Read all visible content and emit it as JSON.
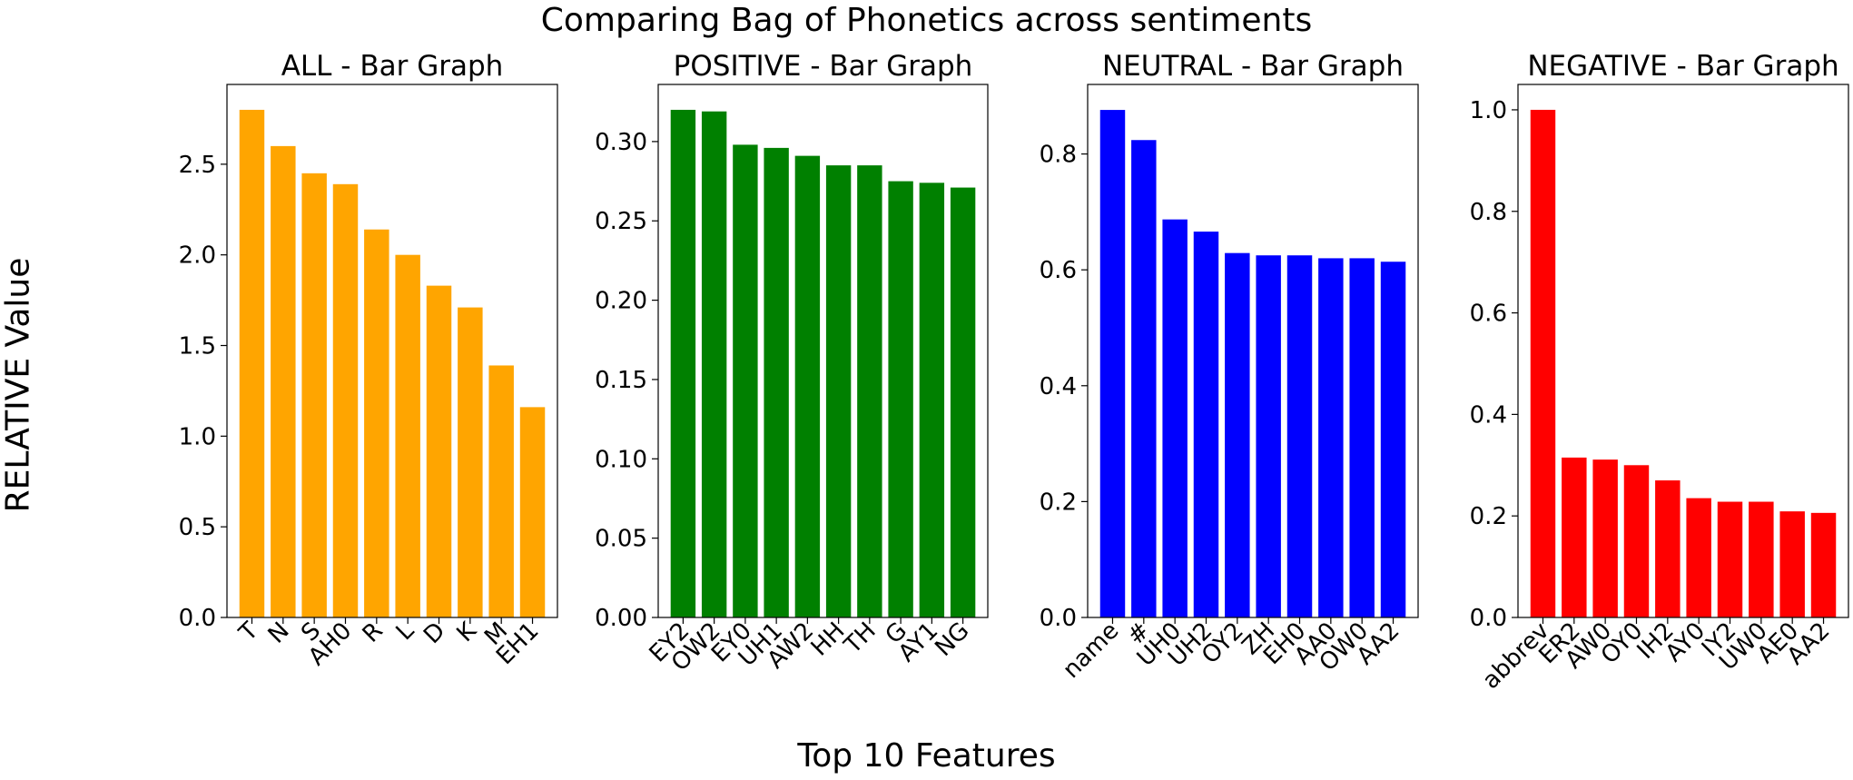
{
  "figure": {
    "title": "Comparing Bag of Phonetics across sentiments",
    "xlabel": "Top 10 Features",
    "ylabel": "RELATIVE Value"
  },
  "chart_data": [
    {
      "type": "bar",
      "title": "ALL - Bar Graph",
      "color": "#ffa500",
      "categories": [
        "T",
        "N",
        "S",
        "AH0",
        "R",
        "L",
        "D",
        "K",
        "M",
        "EH1"
      ],
      "values": [
        2.8,
        2.6,
        2.45,
        2.39,
        2.14,
        2.0,
        1.83,
        1.71,
        1.39,
        1.16
      ],
      "ylim": [
        0,
        2.94
      ],
      "yticks": [
        0.0,
        0.5,
        1.0,
        1.5,
        2.0,
        2.5
      ],
      "ytick_labels": [
        "0.0",
        "0.5",
        "1.0",
        "1.5",
        "2.0",
        "2.5"
      ],
      "grid": false
    },
    {
      "type": "bar",
      "title": "POSITIVE - Bar Graph",
      "color": "#008000",
      "categories": [
        "EY2",
        "OW2",
        "EY0",
        "UH1",
        "AW2",
        "HH",
        "TH",
        "G",
        "AY1",
        "NG"
      ],
      "values": [
        0.32,
        0.319,
        0.298,
        0.296,
        0.291,
        0.285,
        0.285,
        0.275,
        0.274,
        0.271
      ],
      "ylim": [
        0,
        0.336
      ],
      "yticks": [
        0.0,
        0.05,
        0.1,
        0.15,
        0.2,
        0.25,
        0.3
      ],
      "ytick_labels": [
        "0.00",
        "0.05",
        "0.10",
        "0.15",
        "0.20",
        "0.25",
        "0.30"
      ],
      "grid": false
    },
    {
      "type": "bar",
      "title": "NEUTRAL - Bar Graph",
      "color": "#0000ff",
      "categories": [
        "name",
        "#",
        "UH0",
        "UH2",
        "OY2",
        "ZH",
        "EH0",
        "AA0",
        "OW0",
        "AA2"
      ],
      "values": [
        0.876,
        0.824,
        0.687,
        0.666,
        0.629,
        0.625,
        0.625,
        0.62,
        0.62,
        0.614
      ],
      "ylim": [
        0,
        0.92
      ],
      "yticks": [
        0.0,
        0.2,
        0.4,
        0.6,
        0.8
      ],
      "ytick_labels": [
        "0.0",
        "0.2",
        "0.4",
        "0.6",
        "0.8"
      ],
      "grid": false
    },
    {
      "type": "bar",
      "title": "NEGATIVE - Bar Graph",
      "color": "#ff0000",
      "categories": [
        "abbrev",
        "ER2",
        "AW0",
        "OY0",
        "IH2",
        "AY0",
        "IY2",
        "UW0",
        "AE0",
        "AA2"
      ],
      "values": [
        1.0,
        0.315,
        0.311,
        0.3,
        0.27,
        0.235,
        0.228,
        0.228,
        0.209,
        0.206
      ],
      "ylim": [
        0,
        1.05
      ],
      "yticks": [
        0.0,
        0.2,
        0.4,
        0.6,
        0.8,
        1.0
      ],
      "ytick_labels": [
        "0.0",
        "0.2",
        "0.4",
        "0.6",
        "0.8",
        "1.0"
      ],
      "grid": false
    }
  ]
}
